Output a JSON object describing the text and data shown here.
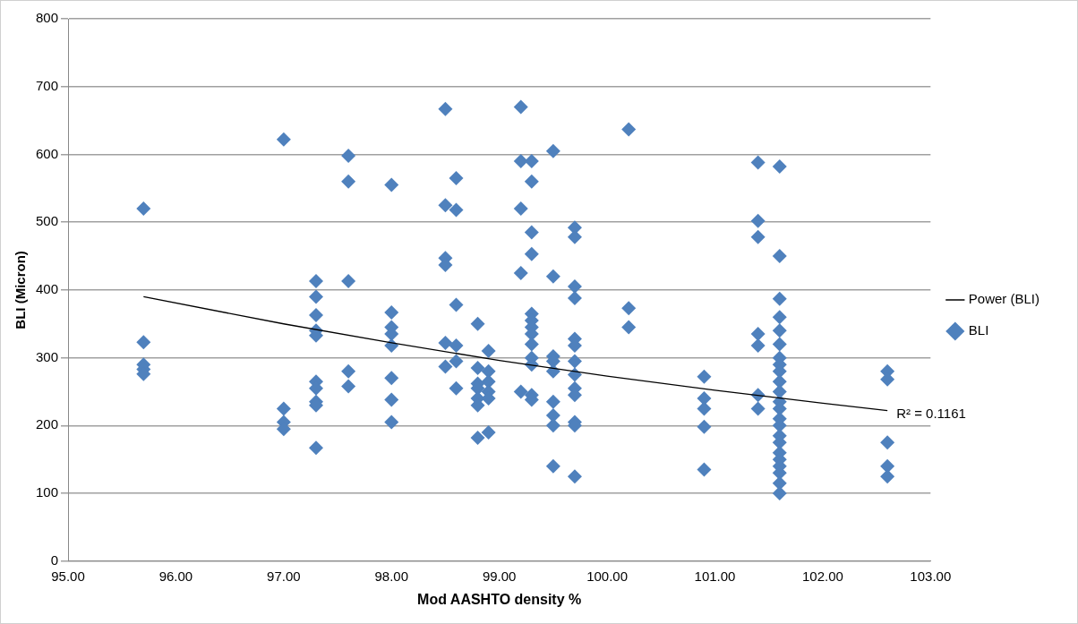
{
  "chart_data": {
    "type": "scatter",
    "xlabel": "Mod AASHTO density %",
    "ylabel": "BLI (Micron)",
    "xlim": [
      95,
      103
    ],
    "xticks": [
      {
        "value": 95,
        "label": "95.00"
      },
      {
        "value": 96,
        "label": "96.00"
      },
      {
        "value": 97,
        "label": "97.00"
      },
      {
        "value": 98,
        "label": "98.00"
      },
      {
        "value": 99,
        "label": "99.00"
      },
      {
        "value": 100,
        "label": "100.00"
      },
      {
        "value": 101,
        "label": "101.00"
      },
      {
        "value": 102,
        "label": "102.00"
      },
      {
        "value": 103,
        "label": "103.00"
      }
    ],
    "ylim": [
      0,
      800
    ],
    "yticks": [
      0,
      100,
      200,
      300,
      400,
      500,
      600,
      700,
      800
    ],
    "grid": "y",
    "legend": "right",
    "series": [
      {
        "name": "BLI",
        "type": "scatter",
        "marker": "diamond",
        "color": "#4f81bd",
        "x": [
          95.7,
          95.7,
          95.7,
          95.7,
          95.7,
          97,
          97,
          97,
          97,
          97.3,
          97.3,
          97.3,
          97.3,
          97.3,
          97.3,
          97.3,
          97.3,
          97.3,
          97.3,
          97.6,
          97.6,
          97.6,
          97.6,
          97.6,
          98,
          98,
          98,
          98,
          98,
          98,
          98,
          98,
          98.5,
          98.5,
          98.5,
          98.5,
          98.5,
          98.5,
          98.6,
          98.6,
          98.6,
          98.6,
          98.6,
          98.6,
          98.8,
          98.8,
          98.8,
          98.8,
          98.8,
          98.8,
          98.8,
          98.9,
          98.9,
          98.9,
          98.9,
          98.9,
          98.9,
          99.2,
          99.2,
          99.2,
          99.2,
          99.2,
          99.3,
          99.3,
          99.3,
          99.3,
          99.3,
          99.3,
          99.3,
          99.3,
          99.3,
          99.3,
          99.3,
          99.3,
          99.3,
          99.5,
          99.5,
          99.5,
          99.5,
          99.5,
          99.5,
          99.5,
          99.5,
          99.5,
          99.7,
          99.7,
          99.7,
          99.7,
          99.7,
          99.7,
          99.7,
          99.7,
          99.7,
          99.7,
          99.7,
          99.7,
          99.7,
          100.2,
          100.2,
          100.2,
          100.9,
          100.9,
          100.9,
          100.9,
          100.9,
          101.4,
          101.4,
          101.4,
          101.4,
          101.4,
          101.4,
          101.4,
          101.6,
          101.6,
          101.6,
          101.6,
          101.6,
          101.6,
          101.6,
          101.6,
          101.6,
          101.6,
          101.6,
          101.6,
          101.6,
          101.6,
          101.6,
          101.6,
          101.6,
          101.6,
          101.6,
          101.6,
          101.6,
          101.6,
          101.6,
          102.6,
          102.6,
          102.6,
          102.6,
          102.6
        ],
        "values": [
          520,
          323,
          290,
          283,
          276,
          622,
          225,
          205,
          195,
          413,
          390,
          363,
          340,
          333,
          265,
          255,
          235,
          230,
          167,
          598,
          560,
          413,
          280,
          258,
          555,
          367,
          345,
          335,
          318,
          270,
          238,
          205,
          667,
          525,
          447,
          437,
          322,
          287,
          565,
          518,
          378,
          318,
          295,
          255,
          350,
          285,
          262,
          255,
          240,
          230,
          182,
          310,
          280,
          265,
          250,
          240,
          190,
          670,
          590,
          520,
          425,
          250,
          590,
          560,
          485,
          453,
          365,
          355,
          345,
          335,
          320,
          300,
          290,
          245,
          238,
          605,
          420,
          302,
          295,
          280,
          235,
          215,
          200,
          140,
          492,
          478,
          405,
          388,
          328,
          318,
          295,
          275,
          255,
          245,
          205,
          200,
          125,
          637,
          373,
          345,
          272,
          240,
          225,
          198,
          135,
          588,
          502,
          478,
          335,
          318,
          245,
          225,
          582,
          450,
          387,
          360,
          340,
          320,
          300,
          290,
          280,
          265,
          250,
          235,
          225,
          210,
          200,
          185,
          175,
          160,
          150,
          140,
          130,
          115,
          100,
          280,
          268,
          175,
          140,
          125
        ]
      },
      {
        "name": "Power (BLI)",
        "type": "line",
        "marker": "none",
        "color": "#000000",
        "x": [
          95.7,
          97,
          98,
          99,
          100,
          101,
          102,
          102.6
        ],
        "values": [
          390,
          350,
          322,
          296,
          273,
          252,
          233,
          222
        ]
      }
    ],
    "annotations": [
      {
        "text": "R² = 0.1161",
        "x": 102.6,
        "y": 222
      }
    ]
  }
}
